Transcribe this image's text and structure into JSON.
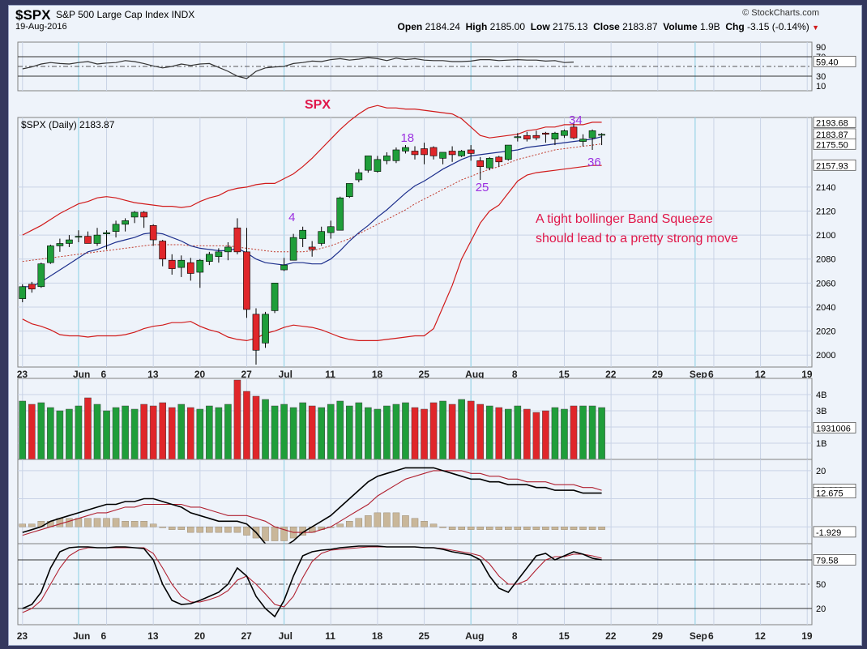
{
  "header": {
    "symbol": "$SPX",
    "description": "S&P 500 Large Cap Index",
    "exchange": "INDX",
    "date": "19-Aug-2016",
    "brand": "© StockCharts.com",
    "quote": {
      "open_label": "Open",
      "open": "2184.24",
      "high_label": "High",
      "high": "2185.00",
      "low_label": "Low",
      "low": "2175.13",
      "close_label": "Close",
      "close": "2183.87",
      "volume_label": "Volume",
      "volume": "1.9B",
      "chg_label": "Chg",
      "chg": "-3.15 (-0.14%)"
    }
  },
  "colors": {
    "up": "#1f9e3a",
    "down": "#e0262a",
    "bb": "#d11a1a",
    "ma_fast": "#1d2f8c",
    "ma_slow": "#c0392b",
    "macd": "#000000",
    "signal": "#b02030",
    "hist": "#c9b79a",
    "annotation": "#e0174a",
    "wave": "#9b30e0",
    "bg": "#eef3fa"
  },
  "chart_data": [
    {
      "panel": "rsi",
      "type": "line",
      "ylabels": [
        "90",
        "70",
        "59.40",
        "30",
        "10"
      ],
      "ylim": [
        0,
        100
      ],
      "guides": [
        70,
        50,
        30
      ],
      "last": 59.4,
      "values": [
        45,
        49,
        55,
        58,
        56,
        55,
        58,
        60,
        55,
        57,
        58,
        62,
        60,
        56,
        51,
        47,
        50,
        55,
        52,
        55,
        56,
        48,
        40,
        30,
        25,
        40,
        47,
        49,
        50,
        56,
        58,
        61,
        60,
        64,
        66,
        63,
        65,
        68,
        66,
        62,
        67,
        64,
        66,
        63,
        62,
        62,
        60,
        60,
        61,
        64,
        64,
        62,
        63,
        64,
        63,
        63,
        61,
        62,
        58,
        59
      ],
      "title": "SPX"
    },
    {
      "panel": "price",
      "type": "candlestick",
      "legend": "$SPX (Daily) 2183.87",
      "ylim": [
        1990,
        2198
      ],
      "yticks": [
        2000,
        2020,
        2040,
        2060,
        2080,
        2100,
        2120,
        2140
      ],
      "ylabels": [
        {
          "text": "2193.68",
          "value": 2193.68
        },
        {
          "text": "2183.87",
          "value": 2183.87
        },
        {
          "text": "2175.50",
          "value": 2175.5
        },
        {
          "text": "2157.93",
          "value": 2157.93
        }
      ],
      "xticks": [
        {
          "label": "23",
          "i": 0
        },
        {
          "label": "Jun",
          "i": 6
        },
        {
          "label": "6",
          "i": 9
        },
        {
          "label": "13",
          "i": 14
        },
        {
          "label": "20",
          "i": 19
        },
        {
          "label": "27",
          "i": 24
        },
        {
          "label": "Jul",
          "i": 28
        },
        {
          "label": "11",
          "i": 33
        },
        {
          "label": "18",
          "i": 38
        },
        {
          "label": "25",
          "i": 43
        },
        {
          "label": "Aug",
          "i": 48
        },
        {
          "label": "8",
          "i": 53
        },
        {
          "label": "15",
          "i": 58
        },
        {
          "label": "22",
          "i": 63
        },
        {
          "label": "29",
          "i": 68
        },
        {
          "label": "Sep",
          "i": 72
        },
        {
          "label": "6",
          "i": 74
        },
        {
          "label": "12",
          "i": 79
        },
        {
          "label": "19",
          "i": 84
        }
      ],
      "candles": [
        [
          2047,
          2059,
          2044,
          2057
        ],
        [
          2059,
          2061,
          2052,
          2055
        ],
        [
          2057,
          2077,
          2056,
          2076
        ],
        [
          2077,
          2092,
          2076,
          2091
        ],
        [
          2091,
          2097,
          2086,
          2093
        ],
        [
          2093,
          2100,
          2090,
          2096
        ],
        [
          2099,
          2104,
          2094,
          2099
        ],
        [
          2099,
          2103,
          2093,
          2093
        ],
        [
          2093,
          2106,
          2091,
          2100
        ],
        [
          2101,
          2104,
          2088,
          2102
        ],
        [
          2103,
          2112,
          2098,
          2109
        ],
        [
          2109,
          2114,
          2103,
          2112
        ],
        [
          2115,
          2120,
          2110,
          2119
        ],
        [
          2119,
          2120,
          2106,
          2115
        ],
        [
          2108,
          2109,
          2091,
          2096
        ],
        [
          2095,
          2096,
          2074,
          2080
        ],
        [
          2079,
          2084,
          2067,
          2072
        ],
        [
          2073,
          2083,
          2065,
          2079
        ],
        [
          2077,
          2081,
          2062,
          2068
        ],
        [
          2069,
          2080,
          2056,
          2079
        ],
        [
          2078,
          2086,
          2075,
          2084
        ],
        [
          2082,
          2089,
          2077,
          2086
        ],
        [
          2086,
          2094,
          2079,
          2090
        ],
        [
          2106,
          2114,
          2084,
          2086
        ],
        [
          2086,
          2106,
          2031,
          2038
        ],
        [
          2034,
          2039,
          1992,
          2004
        ],
        [
          2010,
          2036,
          2006,
          2034
        ],
        [
          2037,
          2060,
          2035,
          2060
        ],
        [
          2071,
          2081,
          2070,
          2075
        ],
        [
          2079,
          2101,
          2079,
          2098
        ],
        [
          2097,
          2107,
          2090,
          2104
        ],
        [
          2090,
          2095,
          2082,
          2088
        ],
        [
          2093,
          2107,
          2091,
          2103
        ],
        [
          2102,
          2112,
          2097,
          2107
        ],
        [
          2104,
          2132,
          2104,
          2131
        ],
        [
          2132,
          2143,
          2131,
          2143
        ],
        [
          2146,
          2155,
          2144,
          2152
        ],
        [
          2154,
          2166,
          2152,
          2166
        ],
        [
          2153,
          2166,
          2152,
          2163
        ],
        [
          2162,
          2169,
          2159,
          2166
        ],
        [
          2162,
          2173,
          2160,
          2171
        ],
        [
          2170,
          2175,
          2168,
          2173
        ],
        [
          2170,
          2174,
          2163,
          2167
        ],
        [
          2172,
          2177,
          2159,
          2167
        ],
        [
          2173,
          2174,
          2163,
          2166
        ],
        [
          2164,
          2168,
          2159,
          2169
        ],
        [
          2170,
          2174,
          2161,
          2167
        ],
        [
          2166,
          2171,
          2165,
          2170
        ],
        [
          2171,
          2175,
          2162,
          2168
        ],
        [
          2162,
          2165,
          2146,
          2157
        ],
        [
          2156,
          2165,
          2154,
          2164
        ],
        [
          2165,
          2166,
          2157,
          2161
        ],
        [
          2163,
          2175,
          2162,
          2175
        ],
        [
          2182,
          2185,
          2178,
          2182
        ],
        [
          2183,
          2186,
          2178,
          2180
        ],
        [
          2183,
          2187,
          2179,
          2181
        ],
        [
          2185,
          2186,
          2177,
          2184
        ],
        [
          2180,
          2186,
          2175,
          2185
        ],
        [
          2183,
          2188,
          2181,
          2187
        ],
        [
          2190,
          2194,
          2180,
          2181
        ],
        [
          2178,
          2184,
          2174,
          2180
        ],
        [
          2181,
          2188,
          2171,
          2187
        ],
        [
          2184,
          2185,
          2175,
          2184
        ]
      ],
      "bb_upper": [
        2100,
        2104,
        2108,
        2113,
        2118,
        2122,
        2126,
        2128,
        2131,
        2132,
        2131,
        2129,
        2127,
        2126,
        2125,
        2124,
        2124,
        2123,
        2124,
        2128,
        2131,
        2133,
        2137,
        2139,
        2140,
        2142,
        2143,
        2143,
        2147,
        2151,
        2157,
        2164,
        2172,
        2180,
        2188,
        2195,
        2201,
        2206,
        2208,
        2206,
        2206,
        2205,
        2205,
        2204,
        2203,
        2202,
        2201,
        2197,
        2190,
        2183,
        2181,
        2182,
        2183,
        2184,
        2187,
        2188,
        2190,
        2190,
        2192,
        2192,
        2192,
        2194,
        2194
      ],
      "bb_lower": [
        2030,
        2026,
        2024,
        2021,
        2017,
        2016,
        2016,
        2015,
        2016,
        2016,
        2016,
        2017,
        2019,
        2022,
        2024,
        2025,
        2027,
        2027,
        2028,
        2024,
        2021,
        2019,
        2015,
        2013,
        2012,
        2014,
        2018,
        2020,
        2023,
        2025,
        2024,
        2023,
        2021,
        2018,
        2015,
        2013,
        2012,
        2012,
        2012,
        2013,
        2014,
        2015,
        2016,
        2016,
        2022,
        2040,
        2058,
        2080,
        2095,
        2110,
        2120,
        2125,
        2135,
        2145,
        2150,
        2152,
        2153,
        2154,
        2155,
        2156,
        2157,
        2158,
        2158
      ],
      "ema_fast": [
        2057,
        2057,
        2061,
        2066,
        2071,
        2076,
        2081,
        2086,
        2088,
        2091,
        2094,
        2096,
        2098,
        2101,
        2102,
        2101,
        2098,
        2095,
        2091,
        2089,
        2088,
        2087,
        2087,
        2089,
        2085,
        2080,
        2077,
        2076,
        2075,
        2077,
        2077,
        2076,
        2076,
        2080,
        2087,
        2095,
        2102,
        2108,
        2115,
        2121,
        2128,
        2135,
        2141,
        2145,
        2150,
        2155,
        2159,
        2163,
        2166,
        2167,
        2168,
        2169,
        2170,
        2171,
        2173,
        2174,
        2175,
        2176,
        2177,
        2178,
        2179,
        2180,
        2182
      ],
      "ema_slow": [
        2078,
        2079,
        2080,
        2081,
        2082,
        2083,
        2084,
        2085,
        2086,
        2087,
        2088,
        2089,
        2090,
        2091,
        2092,
        2092,
        2092,
        2092,
        2091,
        2091,
        2091,
        2091,
        2091,
        2090,
        2089,
        2088,
        2087,
        2086,
        2086,
        2086,
        2086,
        2087,
        2089,
        2091,
        2094,
        2097,
        2101,
        2105,
        2109,
        2113,
        2117,
        2121,
        2126,
        2130,
        2134,
        2138,
        2142,
        2146,
        2149,
        2152,
        2155,
        2157,
        2160,
        2163,
        2165,
        2167,
        2169,
        2171,
        2172,
        2173,
        2174,
        2175,
        2176
      ],
      "waves": [
        {
          "label": "4",
          "i": 29,
          "value": 2115
        },
        {
          "label": "18",
          "i": 41,
          "value": 2181
        },
        {
          "label": "25",
          "i": 49,
          "value": 2140
        },
        {
          "label": "34",
          "i": 59,
          "value": 2196
        },
        {
          "label": "36",
          "i": 61,
          "value": 2161
        }
      ],
      "annotation": [
        "A tight bollinger Band Squeeze",
        "should lead to a pretty strong move"
      ]
    },
    {
      "panel": "volume",
      "type": "bar",
      "ylabels": [
        "4B",
        "3B",
        "1931006",
        "1B"
      ],
      "ylim": [
        0,
        5000000000
      ],
      "values": [
        3.6,
        3.4,
        3.5,
        3.2,
        3.0,
        3.1,
        3.3,
        3.8,
        3.4,
        3.0,
        3.2,
        3.3,
        3.1,
        3.4,
        3.3,
        3.5,
        3.2,
        3.4,
        3.2,
        3.1,
        3.3,
        3.2,
        3.4,
        4.9,
        4.2,
        3.9,
        3.7,
        3.3,
        3.4,
        3.2,
        3.5,
        3.3,
        3.2,
        3.4,
        3.6,
        3.3,
        3.5,
        3.2,
        3.1,
        3.3,
        3.4,
        3.5,
        3.2,
        3.1,
        3.5,
        3.6,
        3.4,
        3.7,
        3.6,
        3.4,
        3.3,
        3.2,
        3.1,
        3.3,
        3.1,
        2.9,
        3.0,
        3.2,
        3.1,
        3.3,
        3.3,
        3.3,
        3.2
      ]
    },
    {
      "panel": "macd",
      "type": "line",
      "ylabels": [
        "20",
        "12.808",
        "12.675",
        "-1.929"
      ],
      "ylim": [
        -6,
        24
      ],
      "zero": 0,
      "macd": [
        -2,
        -1,
        0,
        2,
        3,
        4,
        5,
        6,
        7,
        8,
        8,
        9,
        9,
        10,
        10,
        9,
        8,
        7,
        5,
        4,
        3,
        2,
        2,
        2,
        1,
        -2,
        -6,
        -7,
        -7,
        -5,
        -2,
        0,
        2,
        4,
        7,
        10,
        13,
        16,
        18,
        19,
        20,
        21,
        21,
        21,
        21,
        20,
        19,
        18,
        17,
        17,
        16,
        16,
        15,
        15,
        15,
        14,
        14,
        13,
        13,
        13,
        12,
        12,
        12
      ],
      "signal": [
        -3,
        -2,
        -1,
        0,
        1,
        2,
        3,
        4,
        5,
        5,
        6,
        7,
        7,
        8,
        8,
        8,
        8,
        8,
        7,
        7,
        6,
        5,
        4,
        4,
        4,
        3,
        2,
        0,
        -1,
        -2,
        -2,
        -2,
        -1,
        0,
        2,
        4,
        6,
        8,
        11,
        13,
        15,
        17,
        18,
        19,
        20,
        20,
        20,
        20,
        19,
        19,
        18,
        18,
        17,
        17,
        16,
        16,
        16,
        15,
        15,
        15,
        14,
        14,
        13
      ],
      "hist": [
        1,
        1,
        2,
        2,
        3,
        3,
        3,
        3,
        3,
        3,
        3,
        2,
        2,
        2,
        1,
        0,
        -1,
        -1,
        -2,
        -2,
        -2,
        -2,
        -2,
        -2,
        -3,
        -4,
        -5,
        -5,
        -5,
        -4,
        -3,
        -2,
        -1,
        0,
        1,
        2,
        3,
        4,
        5,
        5,
        5,
        4,
        3,
        2,
        1,
        0,
        -1,
        -1,
        -1,
        -1,
        -1,
        -1,
        -1,
        -1,
        -1,
        -1,
        -1,
        -1,
        -1,
        -1,
        -1,
        -1,
        -1
      ]
    },
    {
      "panel": "stochastic",
      "type": "line",
      "ylabels": [
        "79.58",
        "50",
        "20"
      ],
      "ylim": [
        0,
        100
      ],
      "guides": [
        80,
        50,
        20
      ],
      "k": [
        20,
        25,
        40,
        70,
        90,
        95,
        96,
        96,
        95,
        95,
        96,
        96,
        95,
        94,
        80,
        50,
        30,
        25,
        26,
        30,
        35,
        40,
        50,
        70,
        60,
        35,
        20,
        10,
        30,
        60,
        85,
        90,
        92,
        93,
        95,
        96,
        97,
        97,
        97,
        96,
        96,
        96,
        96,
        95,
        95,
        93,
        90,
        88,
        86,
        80,
        60,
        45,
        40,
        55,
        70,
        85,
        88,
        80,
        85,
        90,
        87,
        82,
        80
      ],
      "d": [
        15,
        20,
        30,
        50,
        70,
        85,
        92,
        95,
        95,
        95,
        95,
        95,
        95,
        95,
        88,
        70,
        50,
        35,
        28,
        28,
        31,
        35,
        42,
        55,
        60,
        50,
        38,
        25,
        22,
        35,
        58,
        78,
        88,
        92,
        93,
        94,
        95,
        96,
        96,
        96,
        96,
        96,
        96,
        95,
        95,
        94,
        92,
        90,
        88,
        85,
        75,
        60,
        50,
        50,
        55,
        68,
        80,
        84,
        84,
        87,
        87,
        85,
        82
      ]
    }
  ]
}
